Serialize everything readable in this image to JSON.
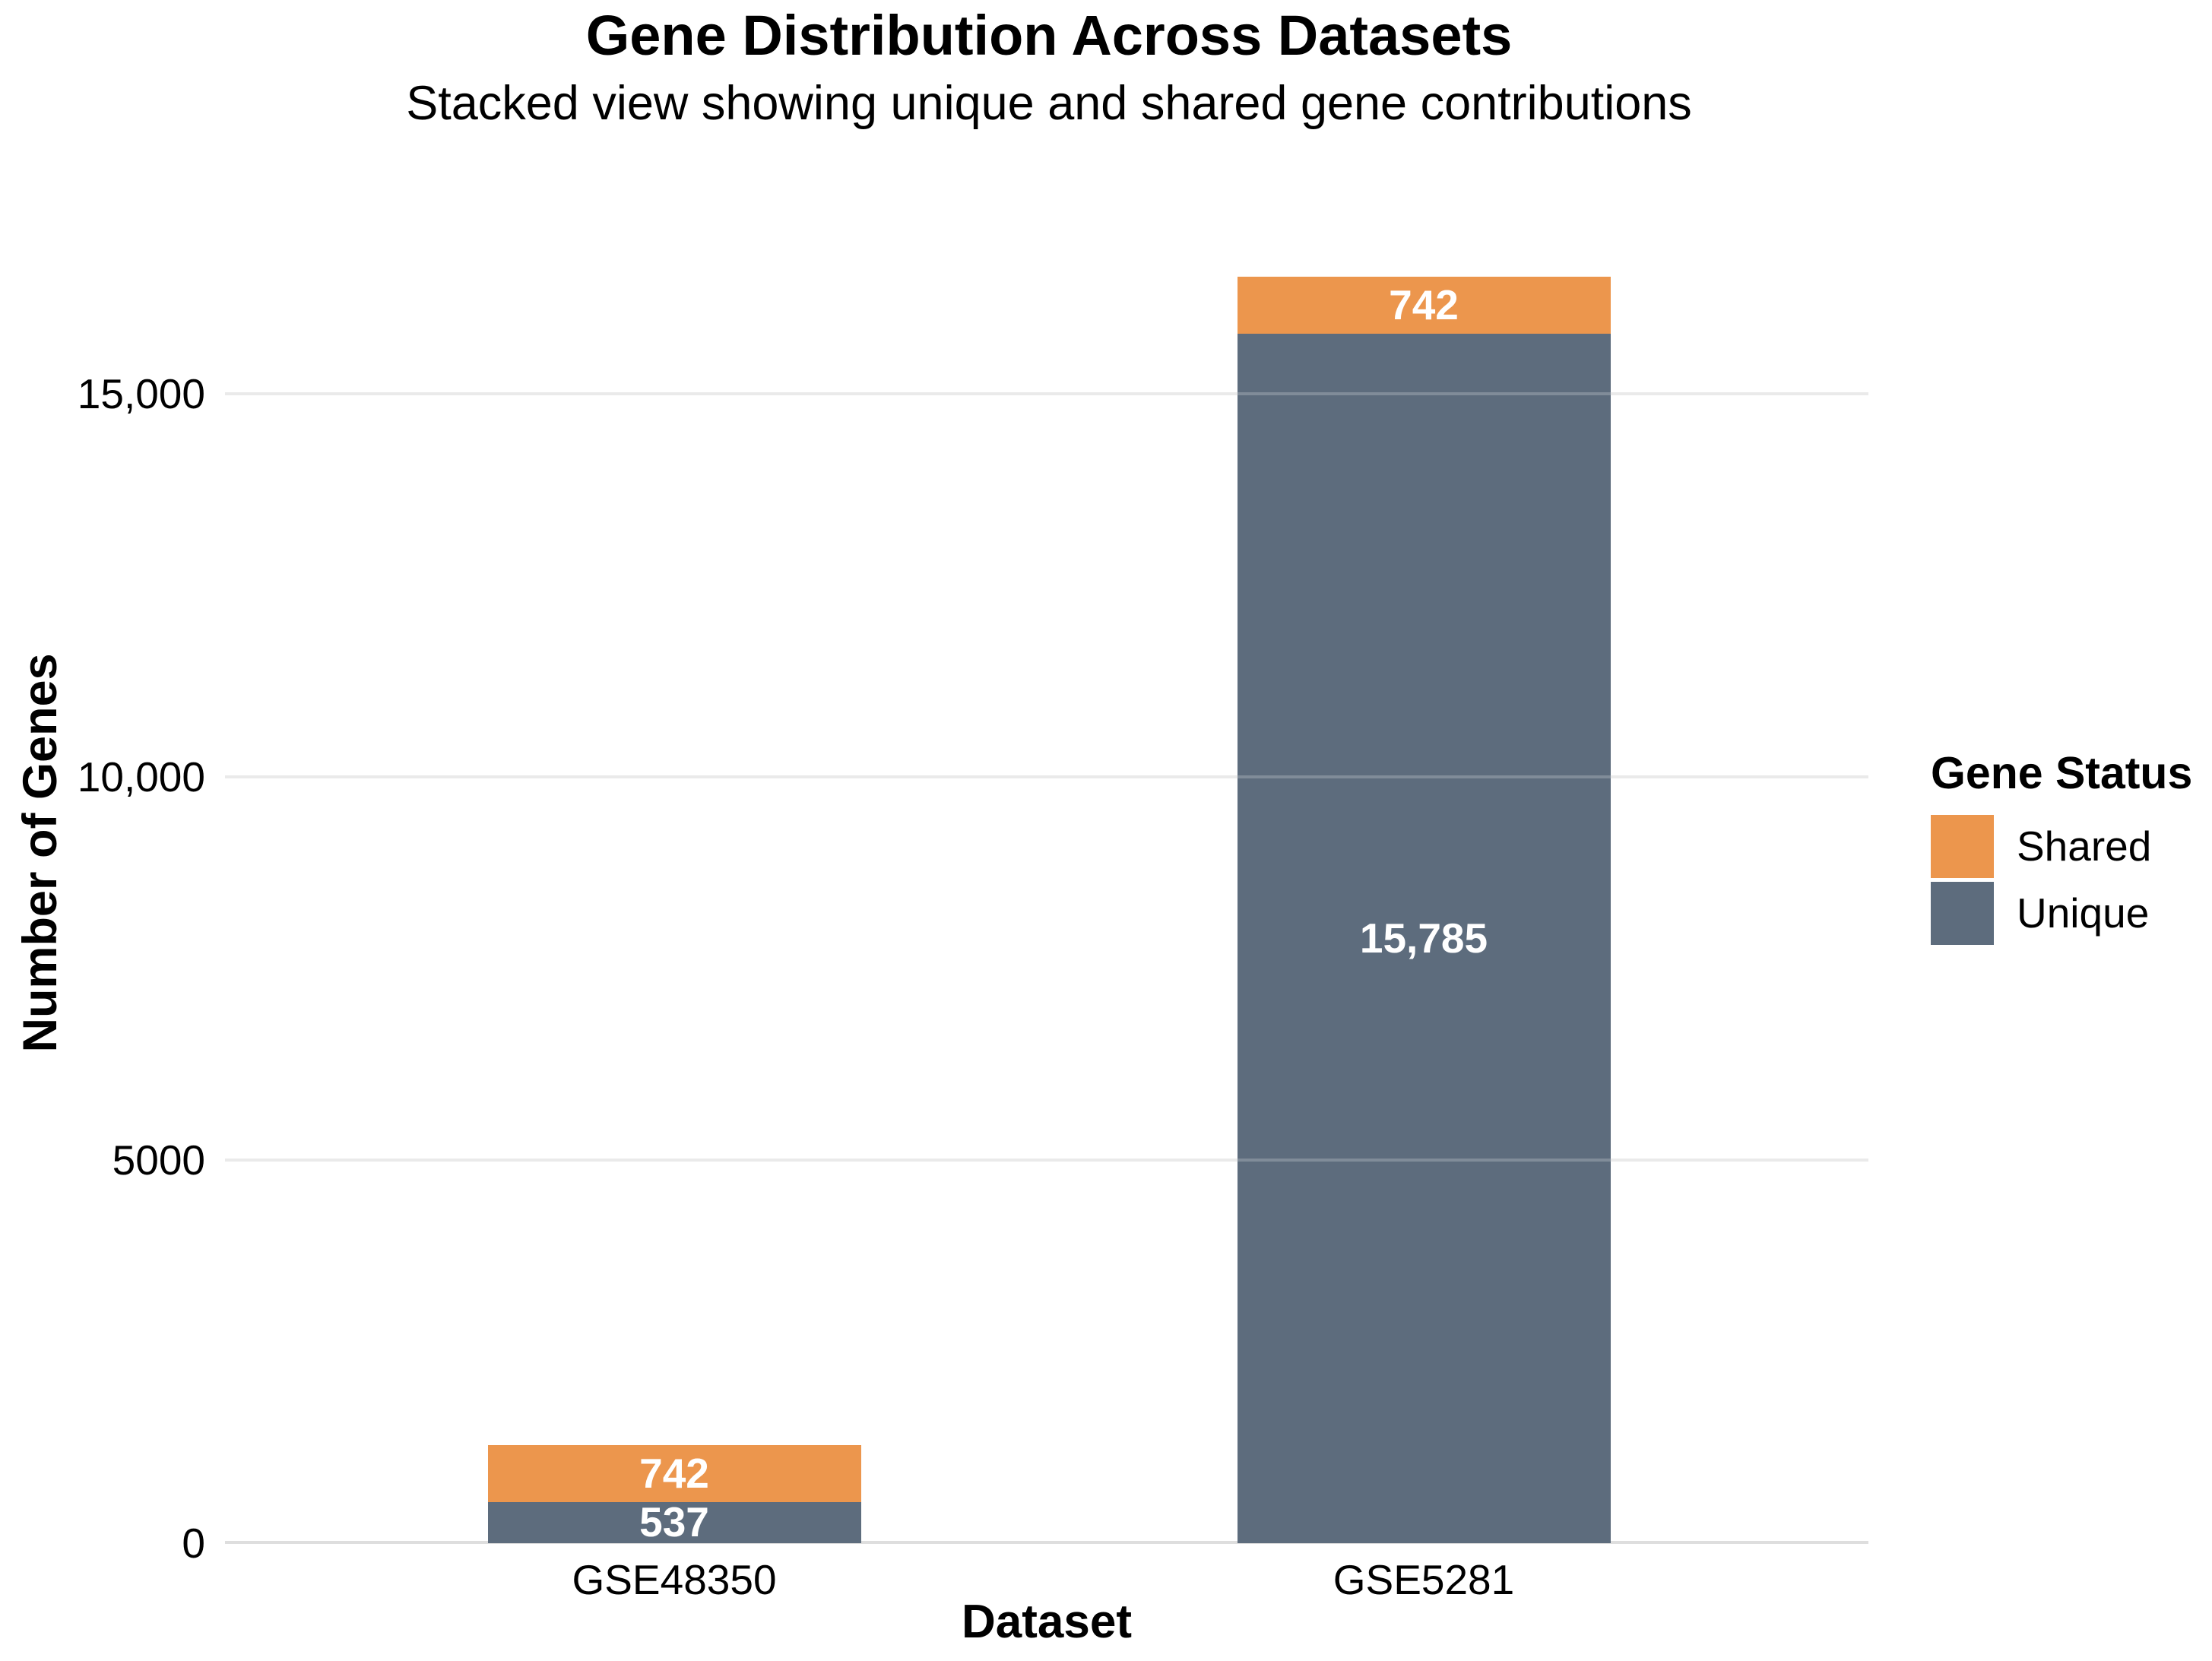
{
  "chart_data": {
    "type": "bar",
    "stacked": true,
    "title": "Gene Distribution Across Datasets",
    "subtitle": "Stacked view showing unique and shared gene contributions",
    "xlabel": "Dataset",
    "ylabel": "Number of Genes",
    "categories": [
      "GSE48350",
      "GSE5281"
    ],
    "series": [
      {
        "name": "Unique",
        "color": "#5D6C7D",
        "values": [
          537,
          15785
        ],
        "value_labels": [
          "537",
          "15,785"
        ]
      },
      {
        "name": "Shared",
        "color": "#EC964D",
        "values": [
          742,
          742
        ],
        "value_labels": [
          "742",
          "742"
        ]
      }
    ],
    "stack_order_bottom_to_top": [
      "Unique",
      "Shared"
    ],
    "totals": [
      1279,
      16527
    ],
    "y_ticks": [
      {
        "value": 0,
        "label": "0"
      },
      {
        "value": 5000,
        "label": "5000"
      },
      {
        "value": 10000,
        "label": "10,000"
      },
      {
        "value": 15000,
        "label": "15,000"
      }
    ],
    "ylim": [
      0,
      16800
    ],
    "grid": "horizontal",
    "legend": {
      "title": "Gene Status",
      "position": "right",
      "entries": [
        {
          "label": "Shared",
          "color": "#EC964D"
        },
        {
          "label": "Unique",
          "color": "#5D6C7D"
        }
      ]
    },
    "bar_label_color": "#FFFFFF",
    "colors": {
      "background": "#FFFFFF",
      "text": "#000000",
      "gridline": "#E4E4E4",
      "axis_line": "#DEDEDE"
    }
  }
}
